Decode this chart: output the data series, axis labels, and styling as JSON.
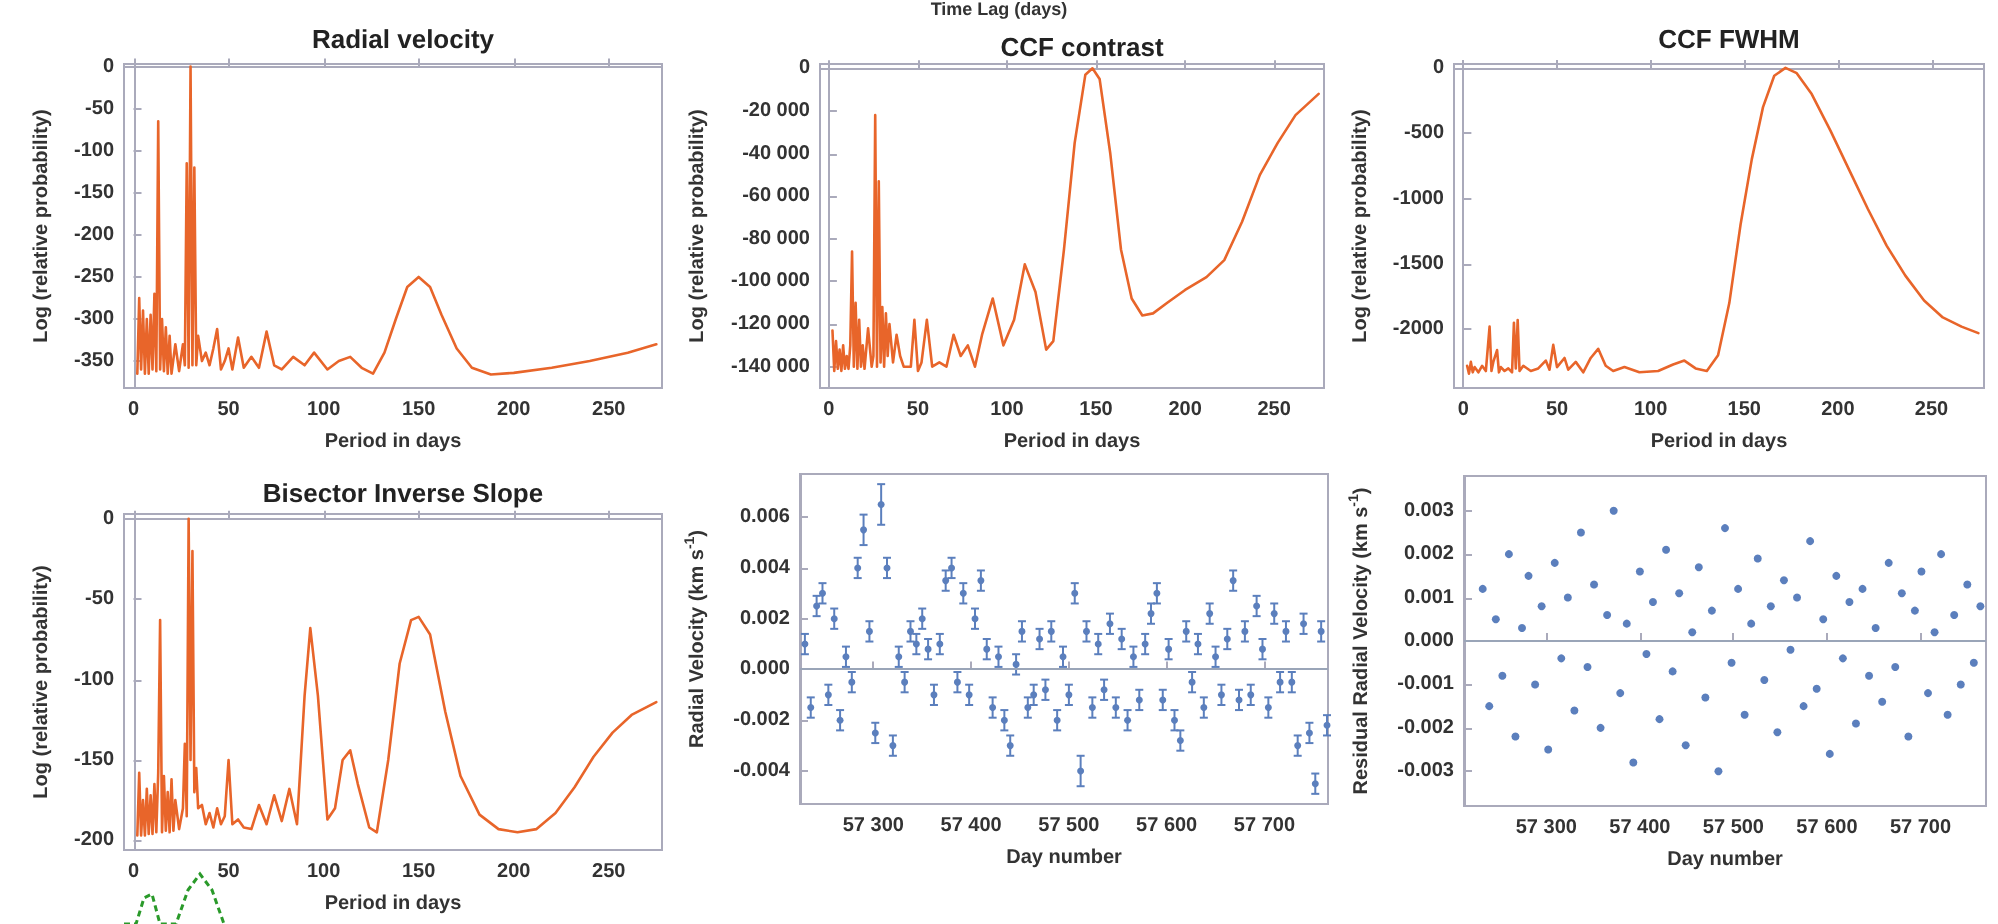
{
  "chart_data": [
    {
      "type": "line",
      "title": "Radial velocity",
      "xlabel": "Period in days",
      "ylabel": "Log (relative probability)",
      "marker": "none",
      "xlim": [
        -5,
        278
      ],
      "ylim": [
        -382,
        3
      ],
      "xticks": [
        0,
        50,
        100,
        150,
        200,
        250
      ],
      "yticks": [
        0,
        -50,
        -100,
        -150,
        -200,
        -250,
        -300,
        -350
      ],
      "x": [
        2,
        3,
        4,
        5,
        6,
        7,
        8,
        9,
        10,
        11,
        12,
        13,
        14,
        15,
        16,
        17,
        18,
        19,
        20,
        22,
        24,
        26,
        27,
        28,
        29,
        30,
        31,
        32,
        33,
        34,
        36,
        38,
        40,
        42,
        44,
        46,
        48,
        50,
        52,
        55,
        58,
        62,
        66,
        70,
        74,
        78,
        84,
        90,
        95,
        102,
        108,
        114,
        120,
        126,
        132,
        138,
        144,
        150,
        156,
        162,
        170,
        178,
        188,
        200,
        220,
        240,
        260,
        275
      ],
      "series": [
        {
          "color": "#e8652a",
          "values": [
            -365,
            -275,
            -360,
            -290,
            -365,
            -300,
            -365,
            -295,
            -360,
            -270,
            -362,
            -65,
            -360,
            -300,
            -362,
            -310,
            -365,
            -320,
            -365,
            -330,
            -362,
            -330,
            -355,
            -115,
            -358,
            0,
            -355,
            -120,
            -355,
            -320,
            -350,
            -340,
            -355,
            -335,
            -312,
            -360,
            -350,
            -335,
            -360,
            -322,
            -358,
            -345,
            -358,
            -315,
            -355,
            -360,
            -345,
            -355,
            -340,
            -360,
            -350,
            -345,
            -358,
            -365,
            -340,
            -300,
            -262,
            -250,
            -262,
            -295,
            -335,
            -358,
            -366,
            -364,
            -358,
            -350,
            -340,
            -330
          ]
        }
      ]
    },
    {
      "type": "line",
      "title": "CCF contrast",
      "xlabel": "Period in days",
      "ylabel": "Log (relative probability)",
      "annotations": [
        "Time Lag (days)"
      ],
      "marker": "none",
      "xlim": [
        -5,
        278
      ],
      "ylim": [
        -150000,
        2000
      ],
      "xticks": [
        0,
        50,
        100,
        150,
        200,
        250
      ],
      "yticks": [
        0,
        {
          "value": -20000,
          "label": "-20 000"
        },
        {
          "value": -40000,
          "label": "-40 000"
        },
        {
          "value": -60000,
          "label": "-60 000"
        },
        {
          "value": -80000,
          "label": "-80 000"
        },
        {
          "value": -100000,
          "label": "-100 000"
        },
        {
          "value": -120000,
          "label": "-120 000"
        },
        {
          "value": -140000,
          "label": "-140 000"
        }
      ],
      "x": [
        2,
        3,
        4,
        5,
        6,
        7,
        8,
        9,
        10,
        11,
        12,
        13,
        14,
        15,
        16,
        17,
        18,
        19,
        20,
        22,
        24,
        25,
        26,
        27,
        28,
        29,
        30,
        31,
        32,
        33,
        34,
        36,
        38,
        40,
        42,
        46,
        48,
        50,
        52,
        55,
        58,
        62,
        66,
        70,
        74,
        78,
        82,
        86,
        92,
        98,
        104,
        110,
        116,
        122,
        126,
        132,
        138,
        144,
        148,
        152,
        158,
        164,
        170,
        176,
        182,
        190,
        200,
        212,
        222,
        232,
        242,
        252,
        262,
        275
      ],
      "series": [
        {
          "color": "#e8652a",
          "values": [
            -123000,
            -142000,
            -128000,
            -141000,
            -132000,
            -142000,
            -130000,
            -141000,
            -135000,
            -141000,
            -130000,
            -86000,
            -140000,
            -110000,
            -141000,
            -118000,
            -140000,
            -130000,
            -141000,
            -122000,
            -140000,
            -135000,
            -22000,
            -140000,
            -53000,
            -138000,
            -112000,
            -140000,
            -115000,
            -135000,
            -120000,
            -138000,
            -125000,
            -135000,
            -140000,
            -140000,
            -118000,
            -142000,
            -138000,
            -118000,
            -140000,
            -138000,
            -140000,
            -125000,
            -135000,
            -130000,
            -140000,
            -125000,
            -108000,
            -130000,
            -118000,
            -92000,
            -105000,
            -132000,
            -128000,
            -85000,
            -35000,
            -3000,
            0,
            -5000,
            -40000,
            -85000,
            -108000,
            -116000,
            -115000,
            -110000,
            -104000,
            -98000,
            -90000,
            -72000,
            -50000,
            -35000,
            -22000,
            -12000
          ]
        }
      ]
    },
    {
      "type": "line",
      "title": "CCF FWHM",
      "xlabel": "Period in days",
      "ylabel": "Log (relative probability)",
      "marker": "none",
      "xlim": [
        -5,
        278
      ],
      "ylim": [
        -2450,
        30
      ],
      "xticks": [
        0,
        50,
        100,
        150,
        200,
        250
      ],
      "yticks": [
        0,
        -500,
        -1000,
        -1500,
        -2000
      ],
      "x": [
        2,
        3,
        4,
        5,
        6,
        8,
        10,
        12,
        14,
        15,
        16,
        18,
        19,
        20,
        22,
        24,
        26,
        27,
        28,
        29,
        30,
        32,
        36,
        40,
        44,
        46,
        48,
        50,
        54,
        56,
        60,
        64,
        68,
        72,
        76,
        80,
        86,
        94,
        104,
        112,
        118,
        124,
        130,
        136,
        142,
        148,
        154,
        160,
        166,
        172,
        178,
        186,
        196,
        206,
        216,
        226,
        236,
        246,
        256,
        266,
        275
      ],
      "series": [
        {
          "color": "#e8652a",
          "values": [
            -2280,
            -2340,
            -2250,
            -2330,
            -2290,
            -2330,
            -2280,
            -2320,
            -1980,
            -2320,
            -2250,
            -2160,
            -2330,
            -2290,
            -2320,
            -2300,
            -2330,
            -1950,
            -2300,
            -1930,
            -2320,
            -2280,
            -2320,
            -2300,
            -2240,
            -2310,
            -2120,
            -2290,
            -2220,
            -2310,
            -2250,
            -2330,
            -2220,
            -2150,
            -2280,
            -2320,
            -2290,
            -2330,
            -2320,
            -2270,
            -2240,
            -2300,
            -2320,
            -2200,
            -1800,
            -1200,
            -700,
            -300,
            -60,
            0,
            -40,
            -200,
            -480,
            -780,
            -1080,
            -1360,
            -1590,
            -1780,
            -1910,
            -1980,
            -2030
          ]
        }
      ]
    },
    {
      "type": "line",
      "title": "Bisector Inverse Slope",
      "xlabel": "Period in days",
      "ylabel": "Log (relative probability)",
      "marker": "none",
      "xlim": [
        -5,
        278
      ],
      "ylim": [
        -206,
        3
      ],
      "xticks": [
        0,
        50,
        100,
        150,
        200,
        250
      ],
      "yticks": [
        0,
        -50,
        -100,
        -150,
        -200
      ],
      "x": [
        2,
        3,
        4,
        5,
        6,
        7,
        8,
        9,
        10,
        11,
        12,
        13,
        14,
        15,
        16,
        17,
        18,
        19,
        20,
        21,
        22,
        24,
        26,
        27,
        28,
        29,
        30,
        31,
        32,
        33,
        34,
        36,
        38,
        40,
        42,
        44,
        46,
        48,
        50,
        52,
        55,
        58,
        62,
        66,
        70,
        74,
        78,
        82,
        86,
        90,
        93,
        97,
        102,
        106,
        110,
        114,
        118,
        124,
        128,
        134,
        140,
        146,
        150,
        156,
        164,
        172,
        182,
        192,
        202,
        212,
        222,
        232,
        242,
        252,
        262,
        275
      ],
      "series": [
        {
          "color": "#e8652a",
          "values": [
            -197,
            -158,
            -197,
            -175,
            -197,
            -168,
            -196,
            -172,
            -196,
            -165,
            -195,
            -158,
            -63,
            -195,
            -160,
            -194,
            -170,
            -195,
            -162,
            -194,
            -175,
            -193,
            -180,
            -140,
            -185,
            0,
            -150,
            -20,
            -170,
            -155,
            -180,
            -178,
            -190,
            -183,
            -192,
            -180,
            -190,
            -185,
            -150,
            -190,
            -187,
            -192,
            -193,
            -178,
            -190,
            -172,
            -188,
            -168,
            -190,
            -110,
            -68,
            -110,
            -187,
            -180,
            -150,
            -144,
            -165,
            -192,
            -195,
            -150,
            -90,
            -63,
            -61,
            -72,
            -120,
            -160,
            -184,
            -193,
            -195,
            -193,
            -183,
            -167,
            -148,
            -133,
            -122,
            -114
          ]
        }
      ]
    },
    {
      "type": "scatter",
      "xlabel": "Day number",
      "ylabel": "Radial Velocity (km s$^{-1}$)",
      "marker": "circle",
      "xlim": [
        57225,
        57765
      ],
      "ylim": [
        -0.0053,
        0.0077
      ],
      "xticks": [
        {
          "value": 57300,
          "label": "57 300"
        },
        {
          "value": 57400,
          "label": "57 400"
        },
        {
          "value": 57500,
          "label": "57 500"
        },
        {
          "value": 57600,
          "label": "57 600"
        },
        {
          "value": 57700,
          "label": "57 700"
        }
      ],
      "yticks": [
        -0.004,
        -0.002,
        {
          "value": 0,
          "label": "0.000"
        },
        0.002,
        0.004,
        0.006
      ],
      "ref_lines": [
        {
          "axis": "y",
          "value": 0,
          "color": "#9aa5b8"
        }
      ],
      "x": [
        57230,
        57236,
        57242,
        57248,
        57254,
        57260,
        57266,
        57272,
        57278,
        57284,
        57290,
        57296,
        57302,
        57308,
        57314,
        57320,
        57326,
        57332,
        57338,
        57344,
        57350,
        57356,
        57362,
        57368,
        57374,
        57380,
        57386,
        57392,
        57398,
        57404,
        57410,
        57416,
        57422,
        57428,
        57434,
        57440,
        57446,
        57452,
        57458,
        57464,
        57470,
        57476,
        57482,
        57488,
        57494,
        57500,
        57506,
        57512,
        57518,
        57524,
        57530,
        57536,
        57542,
        57548,
        57554,
        57560,
        57566,
        57572,
        57578,
        57584,
        57590,
        57596,
        57602,
        57608,
        57614,
        57620,
        57626,
        57632,
        57638,
        57644,
        57650,
        57656,
        57662,
        57668,
        57674,
        57680,
        57686,
        57692,
        57698,
        57704,
        57710,
        57716,
        57722,
        57728,
        57734,
        57740,
        57746,
        57752,
        57758,
        57764
      ],
      "series": [
        {
          "color": "#5b7fbd",
          "values": [
            0.001,
            -0.0015,
            0.0025,
            0.003,
            -0.001,
            0.002,
            -0.002,
            0.0005,
            -0.0005,
            0.004,
            0.0055,
            0.0015,
            -0.0025,
            0.0065,
            0.004,
            -0.003,
            0.0005,
            -0.0005,
            0.0015,
            0.001,
            0.002,
            0.0008,
            -0.001,
            0.001,
            0.0035,
            0.004,
            -0.0005,
            0.003,
            -0.001,
            0.002,
            0.0035,
            0.0008,
            -0.0015,
            0.0005,
            -0.002,
            -0.003,
            0.0002,
            0.0015,
            -0.0015,
            -0.001,
            0.0012,
            -0.0008,
            0.0015,
            -0.002,
            0.0005,
            -0.001,
            0.003,
            -0.004,
            0.0015,
            -0.0015,
            0.001,
            -0.0008,
            0.0018,
            -0.0015,
            0.0012,
            -0.002,
            0.0005,
            -0.0012,
            0.001,
            0.0022,
            0.003,
            -0.0012,
            0.0008,
            -0.002,
            -0.0028,
            0.0015,
            -0.0005,
            0.001,
            -0.0015,
            0.0022,
            0.0005,
            -0.001,
            0.0012,
            0.0035,
            -0.0012,
            0.0015,
            -0.001,
            0.0025,
            0.0008,
            -0.0015,
            0.0022,
            -0.0005,
            0.0015,
            -0.0005,
            -0.003,
            0.0018,
            -0.0025,
            -0.0045,
            0.0015,
            -0.0022
          ],
          "errors": [
            0.0004,
            0.0004,
            0.0004,
            0.0004,
            0.0004,
            0.0004,
            0.0004,
            0.0004,
            0.0004,
            0.0004,
            0.0006,
            0.0004,
            0.0004,
            0.0008,
            0.0004,
            0.0004,
            0.0004,
            0.0004,
            0.0004,
            0.0004,
            0.0004,
            0.0004,
            0.0004,
            0.0004,
            0.0004,
            0.0004,
            0.0004,
            0.0004,
            0.0004,
            0.0004,
            0.0004,
            0.0004,
            0.0004,
            0.0004,
            0.0004,
            0.0004,
            0.0004,
            0.0004,
            0.0004,
            0.0004,
            0.0004,
            0.0004,
            0.0004,
            0.0004,
            0.0004,
            0.0004,
            0.0004,
            0.0006,
            0.0004,
            0.0004,
            0.0004,
            0.0004,
            0.0004,
            0.0004,
            0.0004,
            0.0004,
            0.0004,
            0.0004,
            0.0004,
            0.0004,
            0.0004,
            0.0004,
            0.0004,
            0.0004,
            0.0004,
            0.0004,
            0.0004,
            0.0004,
            0.0004,
            0.0004,
            0.0004,
            0.0004,
            0.0004,
            0.0004,
            0.0004,
            0.0004,
            0.0004,
            0.0004,
            0.0004,
            0.0004,
            0.0004,
            0.0004,
            0.0004,
            0.0004,
            0.0004,
            0.0004,
            0.0004,
            0.0004,
            0.0004,
            0.0004
          ]
        }
      ]
    },
    {
      "type": "scatter",
      "xlabel": "Day number",
      "ylabel": "Residual Radial Velocity (km s$^{-1}$)",
      "marker": "circle",
      "xlim": [
        57212,
        57770
      ],
      "ylim": [
        -0.0038,
        0.0038
      ],
      "xticks": [
        {
          "value": 57300,
          "label": "57 300"
        },
        {
          "value": 57400,
          "label": "57 400"
        },
        {
          "value": 57500,
          "label": "57 500"
        },
        {
          "value": 57600,
          "label": "57 600"
        },
        {
          "value": 57700,
          "label": "57 700"
        }
      ],
      "yticks": [
        -0.003,
        -0.002,
        -0.001,
        {
          "value": 0,
          "label": "0.000"
        },
        0.001,
        0.002,
        0.003
      ],
      "ref_lines": [
        {
          "axis": "y",
          "value": 0,
          "color": "#9aa5b8"
        }
      ],
      "x": [
        57232,
        57239,
        57246,
        57253,
        57260,
        57267,
        57274,
        57281,
        57288,
        57295,
        57302,
        57309,
        57316,
        57323,
        57330,
        57337,
        57344,
        57351,
        57358,
        57365,
        57372,
        57379,
        57386,
        57393,
        57400,
        57407,
        57414,
        57421,
        57428,
        57435,
        57442,
        57449,
        57456,
        57463,
        57470,
        57477,
        57484,
        57491,
        57498,
        57505,
        57512,
        57519,
        57526,
        57533,
        57540,
        57547,
        57554,
        57561,
        57568,
        57575,
        57582,
        57589,
        57596,
        57603,
        57610,
        57617,
        57624,
        57631,
        57638,
        57645,
        57652,
        57659,
        57666,
        57673,
        57680,
        57687,
        57694,
        57701,
        57708,
        57715,
        57722,
        57729,
        57736,
        57743,
        57750,
        57757,
        57764
      ],
      "series": [
        {
          "color": "#5b7fbd",
          "values": [
            0.0012,
            -0.0015,
            0.0005,
            -0.0008,
            0.002,
            -0.0022,
            0.0003,
            0.0015,
            -0.001,
            0.0008,
            -0.0025,
            0.0018,
            -0.0004,
            0.001,
            -0.0016,
            0.0025,
            -0.0006,
            0.0013,
            -0.002,
            0.0006,
            0.003,
            -0.0012,
            0.0004,
            -0.0028,
            0.0016,
            -0.0003,
            0.0009,
            -0.0018,
            0.0021,
            -0.0007,
            0.0011,
            -0.0024,
            0.0002,
            0.0017,
            -0.0013,
            0.0007,
            -0.003,
            0.0026,
            -0.0005,
            0.0012,
            -0.0017,
            0.0004,
            0.0019,
            -0.0009,
            0.0008,
            -0.0021,
            0.0014,
            -0.0002,
            0.001,
            -0.0015,
            0.0023,
            -0.0011,
            0.0005,
            -0.0026,
            0.0015,
            -0.0004,
            0.0009,
            -0.0019,
            0.0012,
            -0.0008,
            0.0003,
            -0.0014,
            0.0018,
            -0.0006,
            0.0011,
            -0.0022,
            0.0007,
            0.0016,
            -0.0012,
            0.0002,
            0.002,
            -0.0017,
            0.0006,
            -0.001,
            0.0013,
            -0.0005,
            0.0008
          ]
        }
      ]
    }
  ]
}
